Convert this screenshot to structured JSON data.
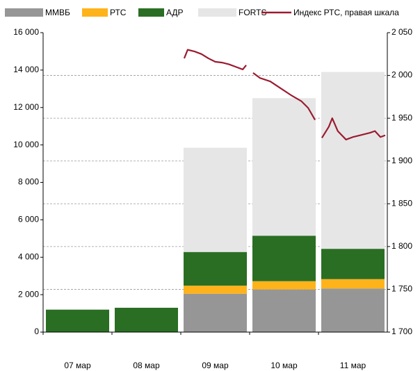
{
  "chart_data": {
    "type": "bar",
    "categories": [
      "07 мар",
      "08 мар",
      "09 мар",
      "10 мар",
      "11 мар"
    ],
    "series": [
      {
        "name": "ММВБ",
        "color": "#969696",
        "values": [
          0,
          0,
          2050,
          2280,
          2330
        ]
      },
      {
        "name": "РТС",
        "color": "#ffb31a",
        "values": [
          0,
          0,
          430,
          440,
          500
        ]
      },
      {
        "name": "АДР",
        "color": "#2a6e24",
        "values": [
          1200,
          1300,
          1800,
          2430,
          1620
        ]
      },
      {
        "name": "FORTS",
        "color": "#e6e6e6",
        "values": [
          0,
          0,
          5570,
          7350,
          9450
        ]
      },
      {
        "name": "Индекс РТС, правая шкала",
        "type": "line",
        "axis": "y2",
        "color": "#9b1b30",
        "x": [
          2.05,
          2.1,
          2.2,
          2.3,
          2.4,
          2.5,
          2.6,
          2.7,
          2.8,
          2.9,
          2.95,
          null,
          3.05,
          3.15,
          3.3,
          3.45,
          3.6,
          3.75,
          3.85,
          3.95,
          null,
          4.05,
          4.15,
          4.2,
          4.28,
          4.4,
          4.5,
          4.6,
          4.75,
          4.82,
          4.9,
          4.97
        ],
        "values": [
          2020,
          2030,
          2028,
          2025,
          2020,
          2016,
          2015,
          2013,
          2010,
          2007,
          2012,
          null,
          2003,
          1997,
          1993,
          1985,
          1977,
          1970,
          1962,
          1948,
          null,
          1927,
          1940,
          1950,
          1935,
          1925,
          1928,
          1930,
          1933,
          1935,
          1928,
          1930
        ]
      }
    ],
    "ylim": [
      0,
      16000
    ],
    "yticks": [
      0,
      {
        "value": 2000,
        "label": "2 000"
      },
      {
        "value": 4000,
        "label": "4 000"
      },
      {
        "value": 6000,
        "label": "6 000"
      },
      {
        "value": 8000,
        "label": "8 000"
      },
      {
        "value": 10000,
        "label": "10 000"
      },
      {
        "value": 12000,
        "label": "12 000"
      },
      {
        "value": 14000,
        "label": "14 000"
      },
      {
        "value": 16000,
        "label": "16 000"
      }
    ],
    "y2lim": [
      1700,
      2050
    ],
    "y2ticks": [
      {
        "value": 1700,
        "label": "1 700"
      },
      {
        "value": 1750,
        "label": "1 750"
      },
      {
        "value": 1800,
        "label": "1 800"
      },
      {
        "value": 1850,
        "label": "1 850"
      },
      {
        "value": 1900,
        "label": "1 900"
      },
      {
        "value": 1950,
        "label": "1 950"
      },
      {
        "value": 2000,
        "label": "2 000"
      },
      {
        "value": 2050,
        "label": "2 050"
      }
    ],
    "grid": true,
    "legend": "top"
  }
}
